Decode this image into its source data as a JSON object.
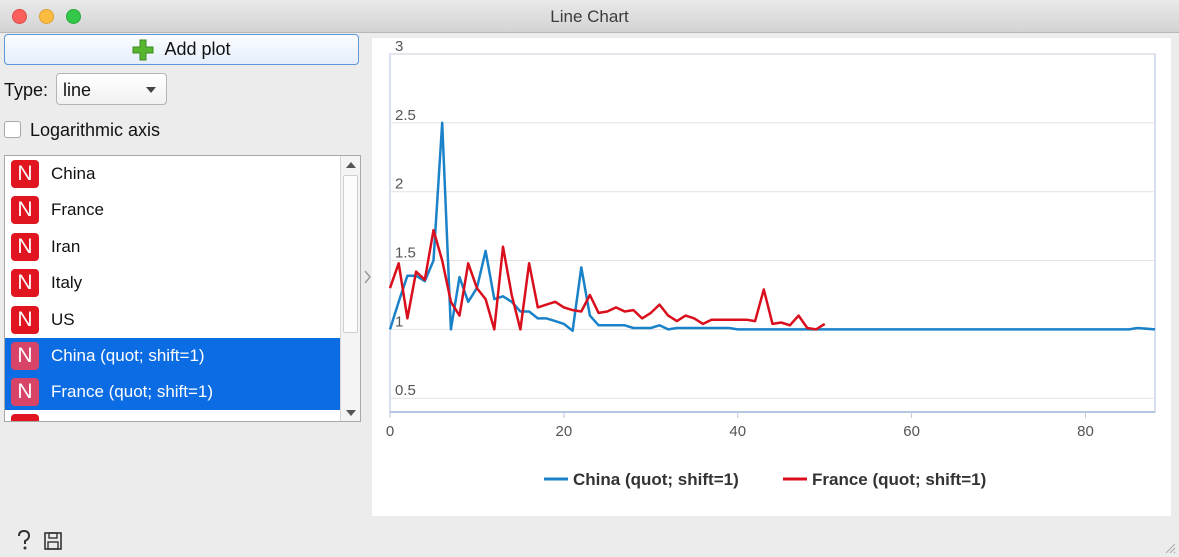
{
  "window": {
    "title": "Line Chart"
  },
  "toolbar": {
    "add_plot_label": "Add plot"
  },
  "type_selector": {
    "label": "Type:",
    "value": "line"
  },
  "log_axis": {
    "label": "Logarithmic axis",
    "checked": false
  },
  "variables": {
    "items": [
      {
        "badge": "N",
        "label": "China",
        "selected": false
      },
      {
        "badge": "N",
        "label": "France",
        "selected": false
      },
      {
        "badge": "N",
        "label": "Iran",
        "selected": false
      },
      {
        "badge": "N",
        "label": "Italy",
        "selected": false
      },
      {
        "badge": "N",
        "label": "US",
        "selected": false
      },
      {
        "badge": "N",
        "label": "China (quot; shift=1)",
        "selected": true
      },
      {
        "badge": "N",
        "label": "France (quot; shift=1)",
        "selected": true
      }
    ]
  },
  "colors": {
    "china": "#1a82c8",
    "france": "#d90f1d",
    "selection": "#0b6ce3",
    "badge": "#e0151f"
  },
  "icons": {
    "add": "plus-icon",
    "help": "help-icon",
    "save": "save-icon",
    "variable": "numeric-variable-icon"
  },
  "chart_data": {
    "type": "line",
    "xlim": [
      0,
      88
    ],
    "ylim": [
      0.4,
      3
    ],
    "y_ticks": [
      "0.5",
      "1",
      "1.5",
      "2",
      "2.5",
      "3"
    ],
    "y_tick_values": [
      0.5,
      1,
      1.5,
      2,
      2.5,
      3
    ],
    "x_ticks": [
      "0",
      "20",
      "40",
      "60",
      "80"
    ],
    "x_tick_values": [
      0,
      20,
      40,
      60,
      80
    ],
    "grid": true,
    "legend_placement": "bottom",
    "series": [
      {
        "name": "China (quot; shift=1)",
        "color": "#1a82c8",
        "x": [
          0,
          1,
          2,
          3,
          4,
          5,
          6,
          7,
          8,
          9,
          10,
          11,
          12,
          13,
          14,
          15,
          16,
          17,
          18,
          19,
          20,
          21,
          22,
          23,
          24,
          25,
          26,
          27,
          28,
          29,
          30,
          31,
          32,
          33,
          34,
          35,
          36,
          37,
          38,
          39,
          40,
          45,
          50,
          55,
          60,
          65,
          70,
          75,
          80,
          85,
          86,
          88
        ],
        "y": [
          1.0,
          1.2,
          1.39,
          1.39,
          1.35,
          1.5,
          2.5,
          1.0,
          1.38,
          1.2,
          1.3,
          1.57,
          1.22,
          1.24,
          1.2,
          1.13,
          1.13,
          1.08,
          1.08,
          1.06,
          1.04,
          0.99,
          1.45,
          1.1,
          1.03,
          1.03,
          1.03,
          1.03,
          1.01,
          1.01,
          1.01,
          1.03,
          1.0,
          1.01,
          1.01,
          1.01,
          1.01,
          1.01,
          1.01,
          1.01,
          1.0,
          1.0,
          1.0,
          1.0,
          1.0,
          1.0,
          1.0,
          1.0,
          1.0,
          1.0,
          1.01,
          1.0
        ]
      },
      {
        "name": "France (quot; shift=1)",
        "color": "#d90f1d",
        "x": [
          0,
          1,
          2,
          3,
          4,
          5,
          6,
          7,
          8,
          9,
          10,
          11,
          12,
          13,
          14,
          15,
          16,
          17,
          18,
          19,
          20,
          21,
          22,
          23,
          24,
          25,
          26,
          27,
          28,
          29,
          30,
          31,
          32,
          33,
          34,
          35,
          36,
          37,
          38,
          39,
          40,
          41,
          42,
          43,
          44,
          45,
          46,
          47,
          48,
          49,
          50
        ],
        "y": [
          1.3,
          1.48,
          1.08,
          1.42,
          1.36,
          1.72,
          1.5,
          1.2,
          1.1,
          1.48,
          1.3,
          1.22,
          1.0,
          1.6,
          1.25,
          1.0,
          1.48,
          1.16,
          1.18,
          1.2,
          1.16,
          1.14,
          1.13,
          1.25,
          1.12,
          1.13,
          1.16,
          1.13,
          1.14,
          1.08,
          1.12,
          1.18,
          1.1,
          1.06,
          1.1,
          1.08,
          1.04,
          1.07,
          1.07,
          1.07,
          1.07,
          1.07,
          1.06,
          1.29,
          1.04,
          1.05,
          1.03,
          1.1,
          1.01,
          1.0,
          1.04
        ]
      }
    ]
  }
}
